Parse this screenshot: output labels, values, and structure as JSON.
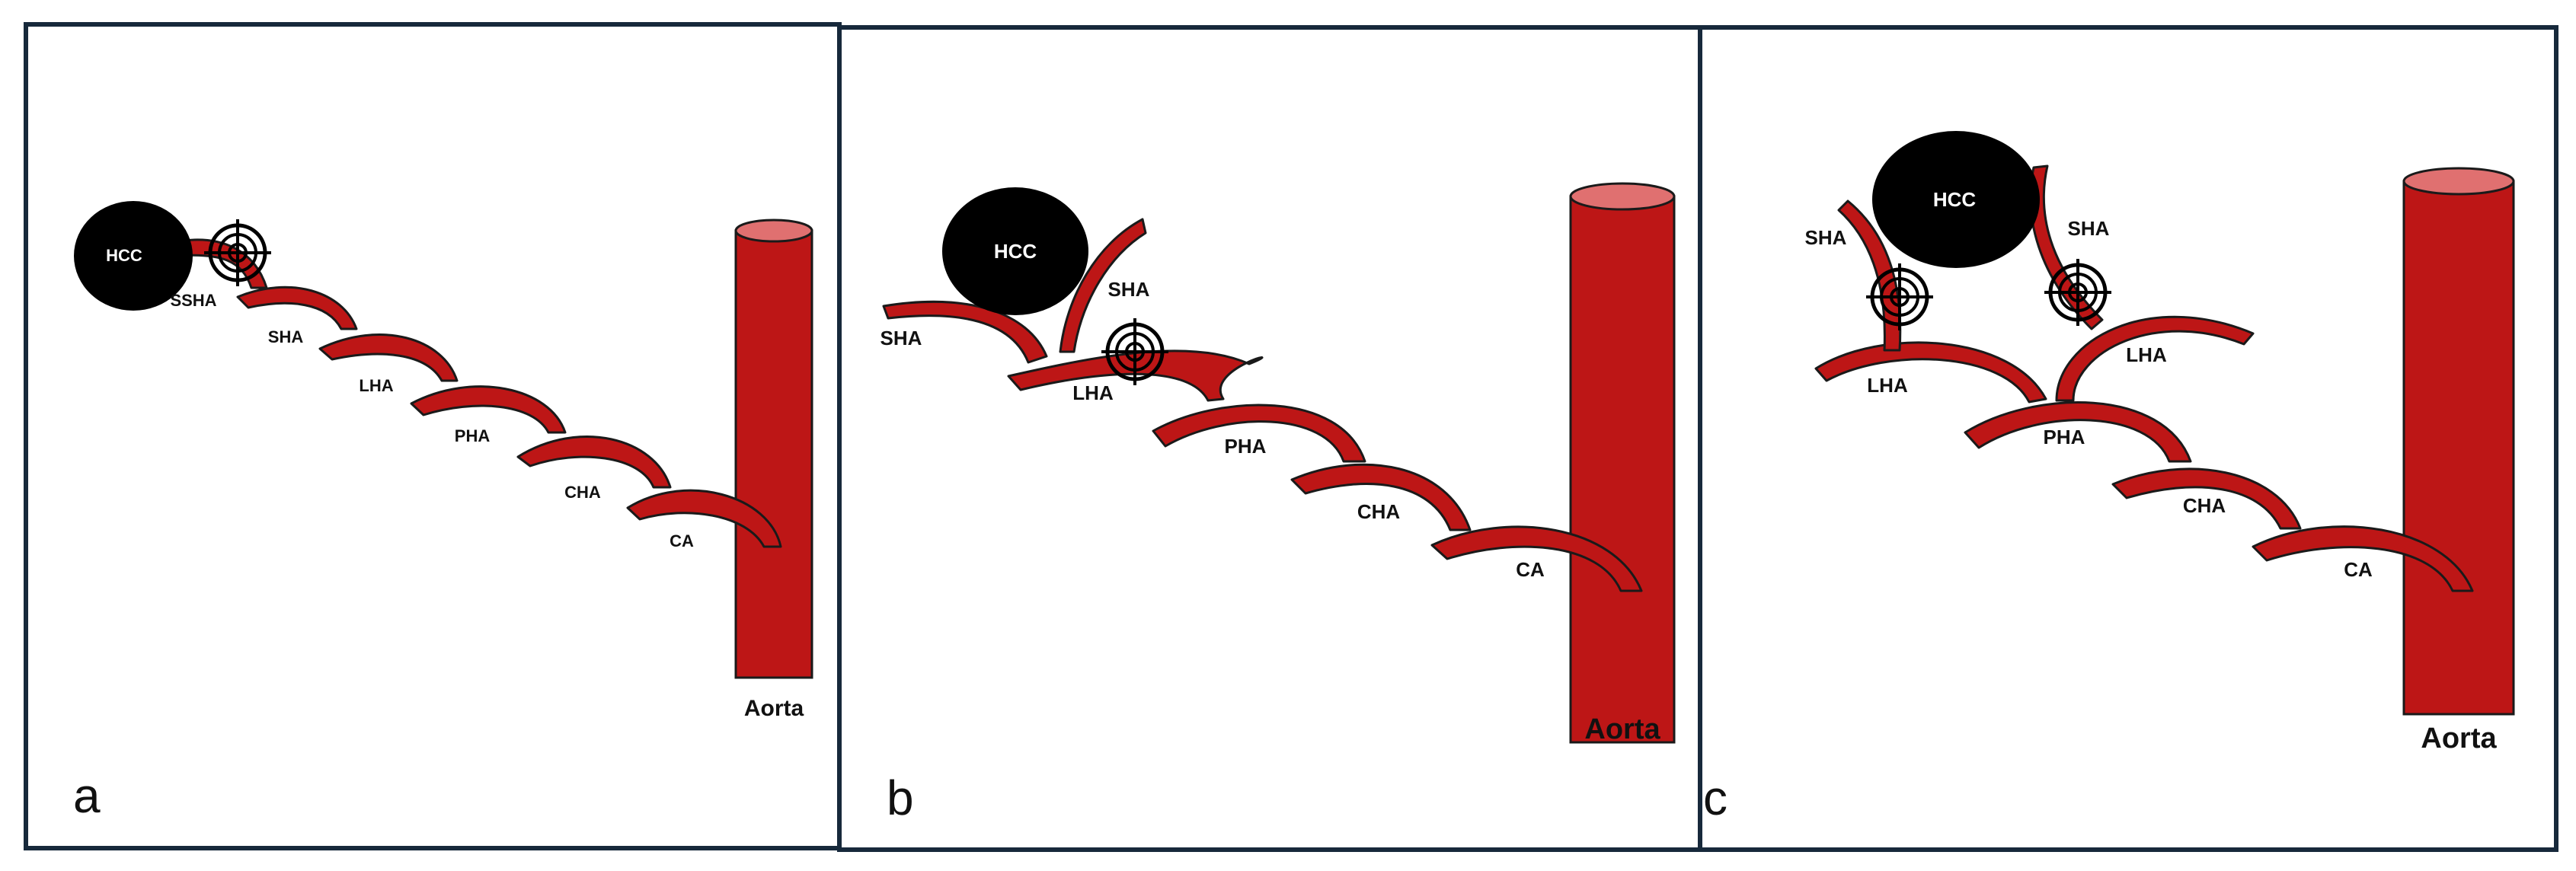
{
  "colors": {
    "artery": "#bd1616",
    "aorta_top": "#e07070",
    "tumor": "#000000",
    "frame": "#17293b"
  },
  "icons": {
    "target": "crosshair-target-icon",
    "tumor": "tumor-circle"
  },
  "panels": [
    {
      "letter": "a",
      "tumor_label": "HCC",
      "labels": [
        "SSHA",
        "SHA",
        "LHA",
        "PHA",
        "CHA",
        "CA"
      ],
      "aorta_label": "Aorta"
    },
    {
      "letter": "b",
      "tumor_label": "HCC",
      "labels": [
        "SHA",
        "SHA",
        "LHA",
        "PHA",
        "CHA",
        "CA"
      ],
      "aorta_label": "Aorta"
    },
    {
      "letter": "c",
      "tumor_label": "HCC",
      "labels": [
        "SHA",
        "SHA",
        "LHA",
        "LHA",
        "PHA",
        "CHA",
        "CA"
      ],
      "aorta_label": "Aorta"
    }
  ]
}
